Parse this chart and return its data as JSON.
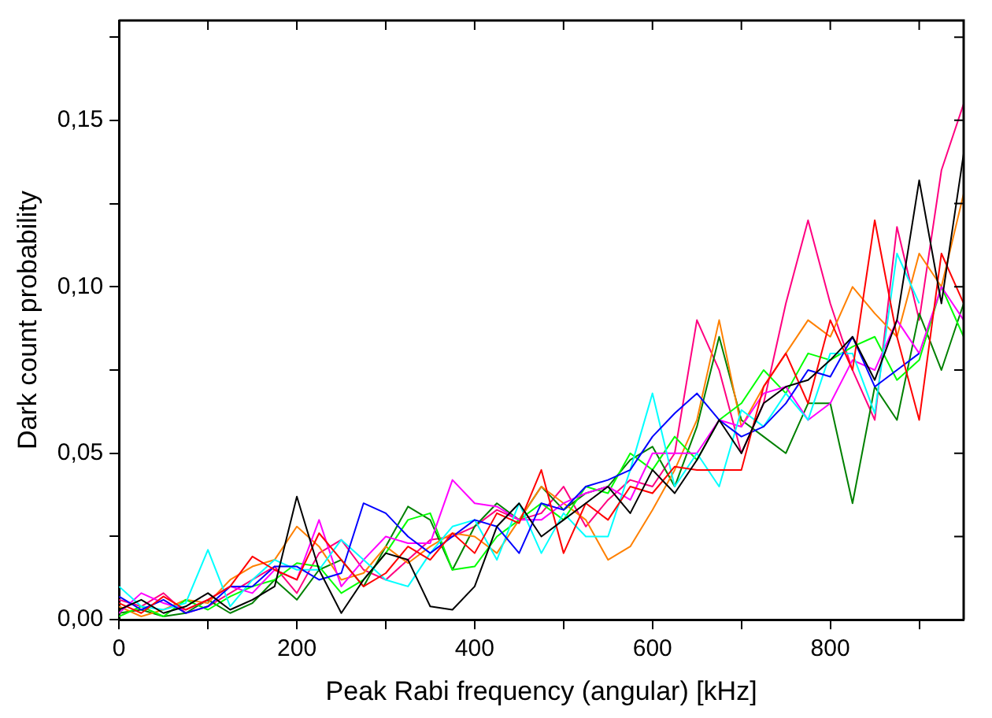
{
  "chart_data": {
    "type": "line",
    "xlabel": "Peak Rabi frequency (angular) [kHz]",
    "ylabel": "Dark count probability",
    "x": [
      0,
      25,
      50,
      75,
      100,
      125,
      150,
      175,
      200,
      225,
      250,
      275,
      300,
      325,
      350,
      375,
      400,
      425,
      450,
      475,
      500,
      525,
      550,
      575,
      600,
      625,
      650,
      675,
      700,
      725,
      750,
      775,
      800,
      825,
      850,
      875,
      900,
      925,
      950
    ],
    "series": [
      {
        "color": "#000000",
        "values": [
          0.003,
          0.006,
          0.002,
          0.004,
          0.008,
          0.003,
          0.006,
          0.01,
          0.037,
          0.015,
          0.002,
          0.012,
          0.02,
          0.018,
          0.004,
          0.003,
          0.01,
          0.028,
          0.035,
          0.025,
          0.03,
          0.035,
          0.04,
          0.032,
          0.045,
          0.038,
          0.048,
          0.06,
          0.05,
          0.065,
          0.07,
          0.072,
          0.078,
          0.085,
          0.072,
          0.09,
          0.132,
          0.095,
          0.14
        ]
      },
      {
        "color": "#ff0000",
        "values": [
          0.005,
          0.002,
          0.007,
          0.003,
          0.006,
          0.01,
          0.019,
          0.015,
          0.012,
          0.026,
          0.018,
          0.01,
          0.014,
          0.022,
          0.018,
          0.026,
          0.02,
          0.032,
          0.029,
          0.045,
          0.02,
          0.035,
          0.03,
          0.04,
          0.038,
          0.046,
          0.045,
          0.045,
          0.045,
          0.07,
          0.08,
          0.065,
          0.09,
          0.075,
          0.12,
          0.085,
          0.06,
          0.11,
          0.095
        ]
      },
      {
        "color": "#0000ff",
        "values": [
          0.007,
          0.003,
          0.006,
          0.002,
          0.004,
          0.01,
          0.01,
          0.016,
          0.016,
          0.012,
          0.014,
          0.035,
          0.032,
          0.025,
          0.02,
          0.025,
          0.03,
          0.028,
          0.02,
          0.035,
          0.033,
          0.04,
          0.042,
          0.045,
          0.055,
          0.062,
          0.068,
          0.06,
          0.055,
          0.058,
          0.065,
          0.075,
          0.073,
          0.085,
          0.07,
          0.075,
          0.08,
          null,
          null
        ]
      },
      {
        "color": "#00ffff",
        "values": [
          0.01,
          0.004,
          0.003,
          0.005,
          0.021,
          0.004,
          0.012,
          0.018,
          0.015,
          0.015,
          0.024,
          0.018,
          0.012,
          0.01,
          0.02,
          0.028,
          0.03,
          0.018,
          0.035,
          0.02,
          0.032,
          0.025,
          0.025,
          0.045,
          0.068,
          0.04,
          0.05,
          0.04,
          0.063,
          0.058,
          0.068,
          0.06,
          0.08,
          0.08,
          0.062,
          0.11,
          0.095,
          null,
          null
        ]
      },
      {
        "color": "#ff00ff",
        "values": [
          0.002,
          0.008,
          0.005,
          0.003,
          0.006,
          0.01,
          0.008,
          0.015,
          0.012,
          0.03,
          0.01,
          0.018,
          0.025,
          0.023,
          0.023,
          0.042,
          0.035,
          0.034,
          0.03,
          0.03,
          0.035,
          0.038,
          0.04,
          0.036,
          0.05,
          0.05,
          0.05,
          0.06,
          0.058,
          0.068,
          0.07,
          0.06,
          0.065,
          0.078,
          0.075,
          0.09,
          0.08,
          0.1,
          0.09
        ]
      },
      {
        "color": "#00ff00",
        "values": [
          0.001,
          0.004,
          0.001,
          0.006,
          0.003,
          0.007,
          0.01,
          0.012,
          0.017,
          0.016,
          0.008,
          0.012,
          0.02,
          0.03,
          0.032,
          0.015,
          0.016,
          0.025,
          0.03,
          0.035,
          0.03,
          0.04,
          0.038,
          0.05,
          0.045,
          0.055,
          0.048,
          0.06,
          0.065,
          0.075,
          0.068,
          0.08,
          0.078,
          0.082,
          0.085,
          0.072,
          0.078,
          0.1,
          0.085
        ]
      },
      {
        "color": "#ff8000",
        "values": [
          0.004,
          0.001,
          0.003,
          0.006,
          0.005,
          0.012,
          0.016,
          0.018,
          0.028,
          0.022,
          0.012,
          0.014,
          0.022,
          0.017,
          0.022,
          0.026,
          0.025,
          0.02,
          0.03,
          0.04,
          0.035,
          0.03,
          0.018,
          0.022,
          0.033,
          0.045,
          0.06,
          0.09,
          0.058,
          0.07,
          0.08,
          0.09,
          0.085,
          0.1,
          0.092,
          0.085,
          0.11,
          0.1,
          0.128
        ]
      },
      {
        "color": "#008000",
        "values": [
          0.002,
          0.003,
          0.001,
          0.002,
          0.006,
          0.002,
          0.005,
          0.012,
          0.006,
          0.015,
          0.018,
          0.01,
          0.022,
          0.034,
          0.03,
          0.015,
          0.028,
          0.035,
          0.03,
          0.04,
          0.033,
          0.038,
          0.04,
          0.048,
          0.052,
          0.04,
          0.058,
          0.085,
          0.06,
          0.055,
          0.05,
          0.065,
          0.065,
          0.035,
          0.07,
          0.06,
          0.092,
          0.075,
          0.095
        ]
      },
      {
        "color": "#ff0080",
        "values": [
          0.006,
          0.004,
          0.008,
          0.002,
          0.004,
          0.008,
          0.012,
          0.016,
          0.008,
          0.02,
          0.024,
          0.015,
          0.012,
          0.018,
          0.024,
          0.025,
          0.028,
          0.033,
          0.03,
          0.032,
          0.04,
          0.028,
          0.036,
          0.042,
          0.04,
          0.05,
          0.09,
          0.075,
          0.05,
          0.065,
          0.095,
          0.12,
          0.095,
          0.075,
          0.06,
          0.118,
          0.09,
          0.135,
          0.155
        ]
      }
    ],
    "xlim": [
      0,
      950
    ],
    "xticks": [
      0,
      {
        "value": 100,
        "label": null
      },
      200,
      {
        "value": 300,
        "label": null
      },
      400,
      {
        "value": 500,
        "label": null
      },
      600,
      {
        "value": 700,
        "label": null
      },
      800,
      {
        "value": 900,
        "label": null
      }
    ],
    "ylim": [
      0,
      0.18
    ],
    "yticks": [
      {
        "value": 0,
        "label": "0,00"
      },
      {
        "value": 0.025,
        "label": null
      },
      {
        "value": 0.05,
        "label": "0,05"
      },
      {
        "value": 0.075,
        "label": null
      },
      {
        "value": 0.1,
        "label": "0,10"
      },
      {
        "value": 0.125,
        "label": null
      },
      {
        "value": 0.15,
        "label": "0,15"
      },
      {
        "value": 0.175,
        "label": null
      }
    ],
    "grid": false,
    "legend": false,
    "marker": "none",
    "line_style": "solid"
  }
}
